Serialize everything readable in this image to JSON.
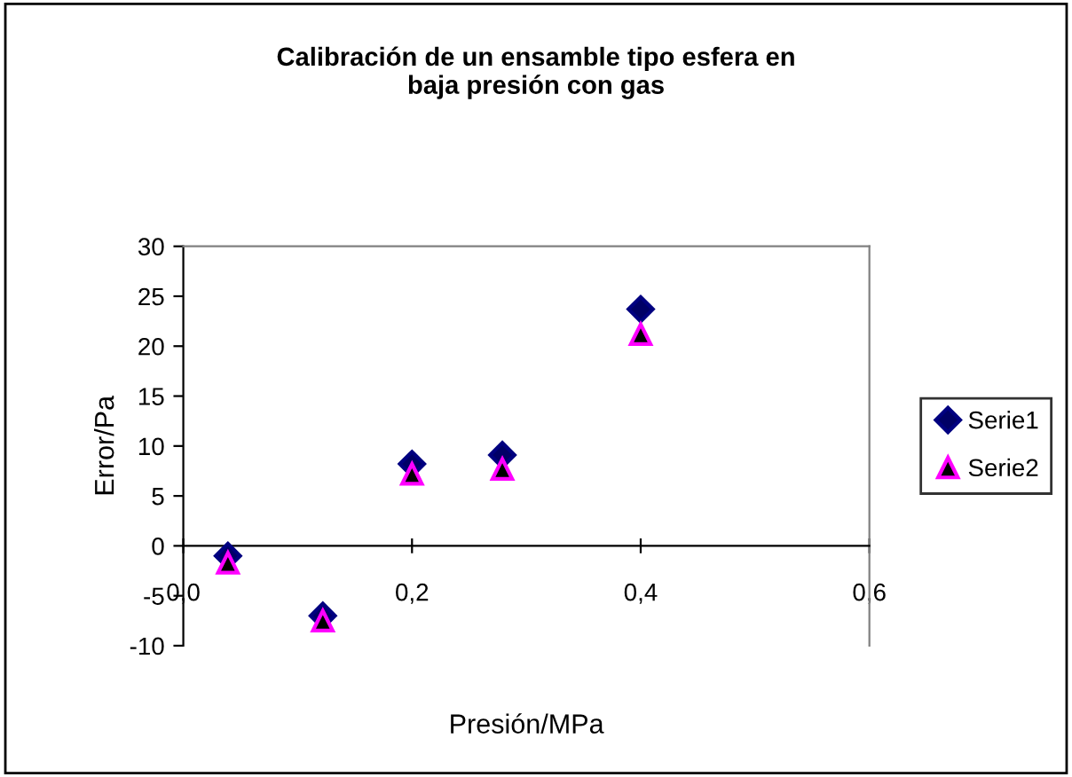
{
  "chart_data": {
    "type": "scatter",
    "title": "Calibración de un ensamble tipo esfera en\nbaja presión con gas",
    "xlabel": "Presión/MPa",
    "ylabel": "Error/Pa",
    "series": [
      {
        "name": "Serie1",
        "color": "#000066",
        "marker": "diamond",
        "x": [
          0.039,
          0.122,
          0.2,
          0.279,
          0.4
        ],
        "values": [
          -1.0,
          -7.0,
          8.2,
          9.1,
          23.7
        ]
      },
      {
        "name": "Serie2",
        "color": "#000000",
        "marker": "triangle",
        "x": [
          0.039,
          0.122,
          0.2,
          0.279,
          0.4
        ],
        "values": [
          -1.7,
          -7.5,
          7.2,
          7.7,
          21.2
        ]
      }
    ],
    "xlim": [
      0,
      0.6
    ],
    "xticks": [
      {
        "value": 0,
        "label": "0,0"
      },
      {
        "value": 0.2,
        "label": "0,2"
      },
      {
        "value": 0.4,
        "label": "0,4"
      },
      {
        "value": 0.6,
        "label": "0,6"
      }
    ],
    "ylim": [
      -10,
      30
    ],
    "yticks": [
      -10,
      -5,
      0,
      5,
      10,
      15,
      20,
      25,
      30
    ],
    "grid": false,
    "legend": "right"
  }
}
